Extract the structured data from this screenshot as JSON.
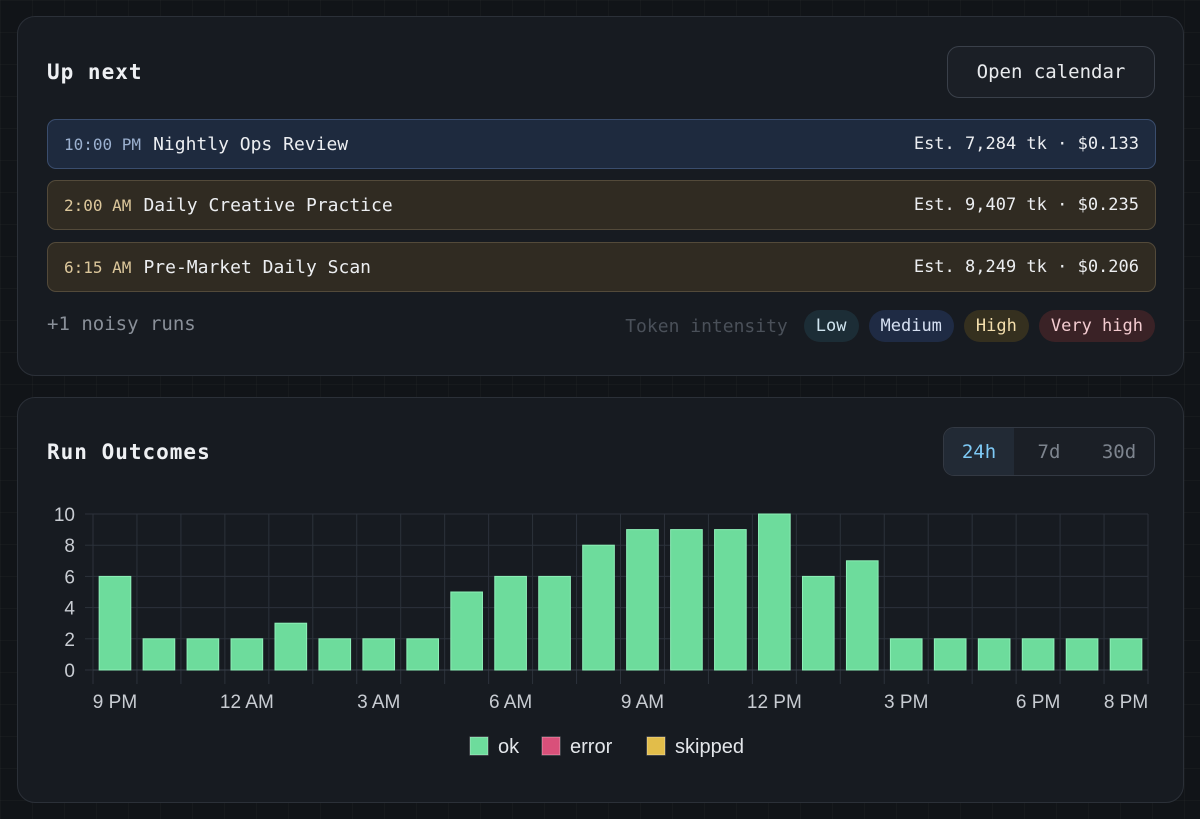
{
  "up_next": {
    "title": "Up next",
    "open_calendar_label": "Open calendar",
    "events": [
      {
        "time": "10:00 PM",
        "name": "Nightly Ops Review",
        "estimate": "Est. 7,284 tk · $0.133",
        "intensity": "medium"
      },
      {
        "time": "2:00 AM",
        "name": "Daily Creative Practice",
        "estimate": "Est. 9,407 tk · $0.235",
        "intensity": "high"
      },
      {
        "time": "6:15 AM",
        "name": "Pre-Market Daily Scan",
        "estimate": "Est. 8,249 tk · $0.206",
        "intensity": "high"
      }
    ],
    "noisy_runs": "+1 noisy runs",
    "intensity_legend": {
      "label": "Token intensity",
      "levels": [
        "Low",
        "Medium",
        "High",
        "Very high"
      ]
    }
  },
  "run_outcomes": {
    "title": "Run Outcomes",
    "ranges": [
      "24h",
      "7d",
      "30d"
    ],
    "active_range": "24h"
  },
  "colors": {
    "ok": "#6ddc9c",
    "error": "#d9507a",
    "skipped": "#e2bd4a",
    "active_tab": "#7ec9f5"
  },
  "chart_data": {
    "type": "bar",
    "categories": [
      "9 PM",
      "10 PM",
      "11 PM",
      "12 AM",
      "1 AM",
      "2 AM",
      "3 AM",
      "4 AM",
      "5 AM",
      "6 AM",
      "7 AM",
      "8 AM",
      "9 AM",
      "10 AM",
      "11 AM",
      "12 PM",
      "1 PM",
      "2 PM",
      "3 PM",
      "4 PM",
      "5 PM",
      "6 PM",
      "7 PM",
      "8 PM"
    ],
    "x_tick_labels": [
      "9 PM",
      "12 AM",
      "3 AM",
      "6 AM",
      "9 AM",
      "12 PM",
      "3 PM",
      "6 PM",
      "8 PM"
    ],
    "series": [
      {
        "name": "ok",
        "values": [
          6,
          2,
          2,
          2,
          3,
          2,
          2,
          2,
          5,
          6,
          6,
          8,
          9,
          9,
          9,
          10,
          6,
          7,
          2,
          2,
          2,
          2,
          2,
          2
        ]
      },
      {
        "name": "error",
        "values": [
          0,
          0,
          0,
          0,
          0,
          0,
          0,
          0,
          0,
          0,
          0,
          0,
          0,
          0,
          0,
          0,
          0,
          0,
          0,
          0,
          0,
          0,
          0,
          0
        ]
      },
      {
        "name": "skipped",
        "values": [
          0,
          0,
          0,
          0,
          0,
          0,
          0,
          0,
          0,
          0,
          0,
          0,
          0,
          0,
          0,
          0,
          0,
          0,
          0,
          0,
          0,
          0,
          0,
          0
        ]
      }
    ],
    "y_ticks": [
      "0",
      "2",
      "4",
      "6",
      "8",
      "10"
    ],
    "ylim": [
      0,
      10
    ],
    "stacked": true,
    "grid": true,
    "legend_position": "bottom-center"
  }
}
